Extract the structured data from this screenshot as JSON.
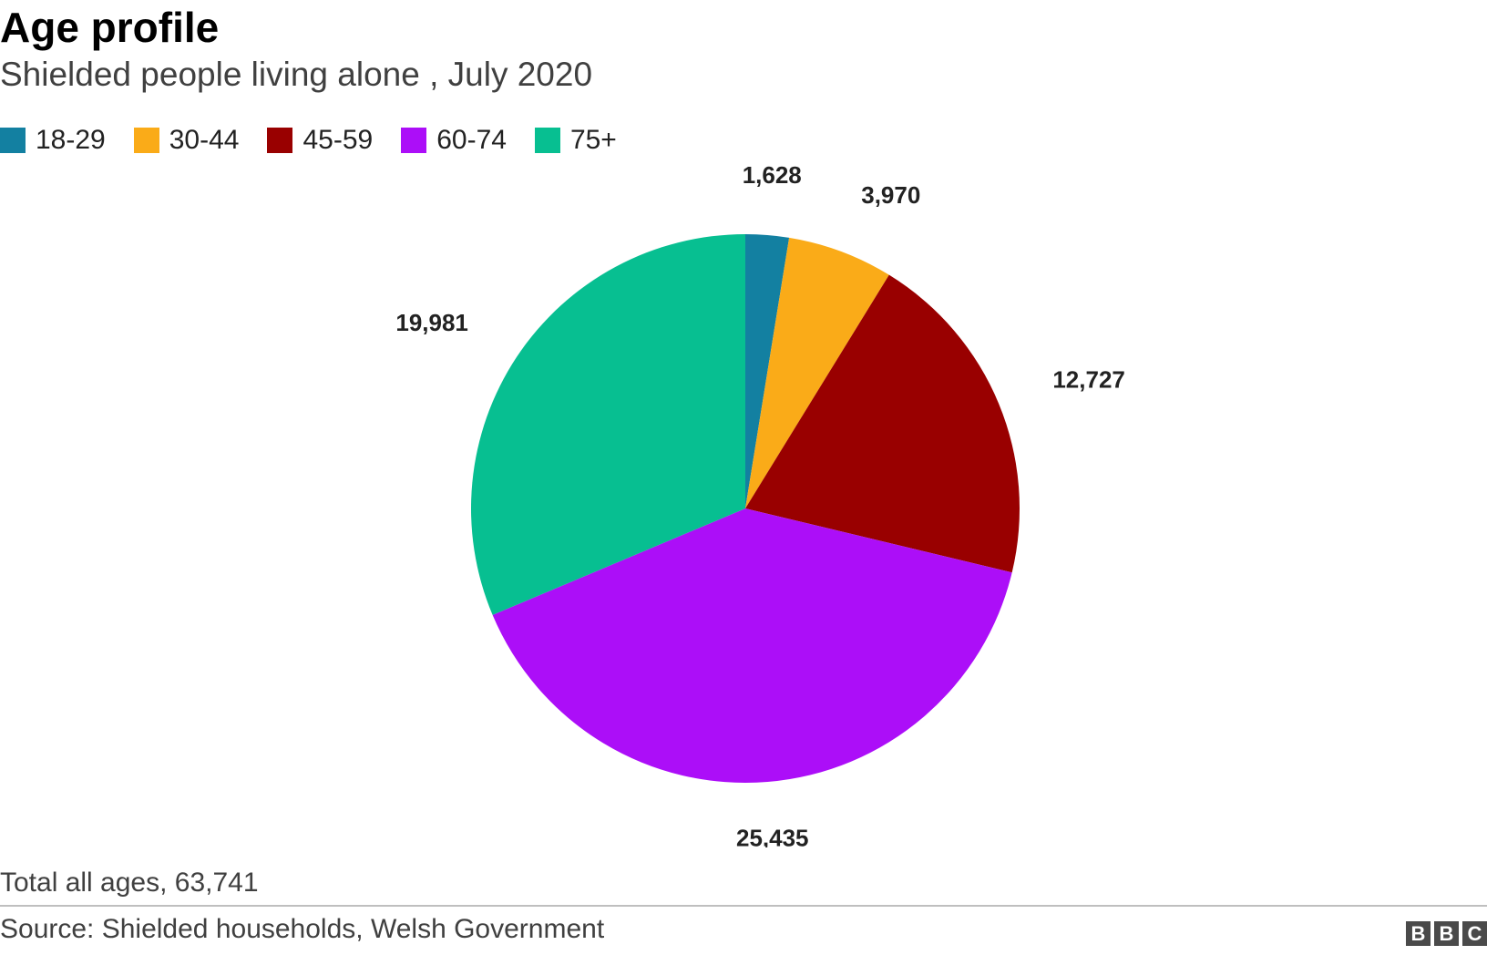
{
  "chart_data": {
    "type": "pie",
    "title": "Age profile",
    "subtitle": "Shielded people living alone , July 2020",
    "legend_position": "top-left",
    "categories": [
      "18-29",
      "30-44",
      "45-59",
      "60-74",
      "75+"
    ],
    "values": [
      1628,
      3970,
      12727,
      25435,
      19981
    ],
    "value_labels": [
      "1,628",
      "3,970",
      "12,727",
      "25,435",
      "19,981"
    ],
    "colors": [
      "#1380A1",
      "#FAAB18",
      "#990000",
      "#AC0EF8",
      "#07BF91"
    ],
    "start": "12 o'clock",
    "direction": "clockwise"
  },
  "total_note": "Total all ages, 63,741",
  "source": "Source: Shielded households, Welsh Government",
  "logo": [
    "B",
    "B",
    "C"
  ]
}
